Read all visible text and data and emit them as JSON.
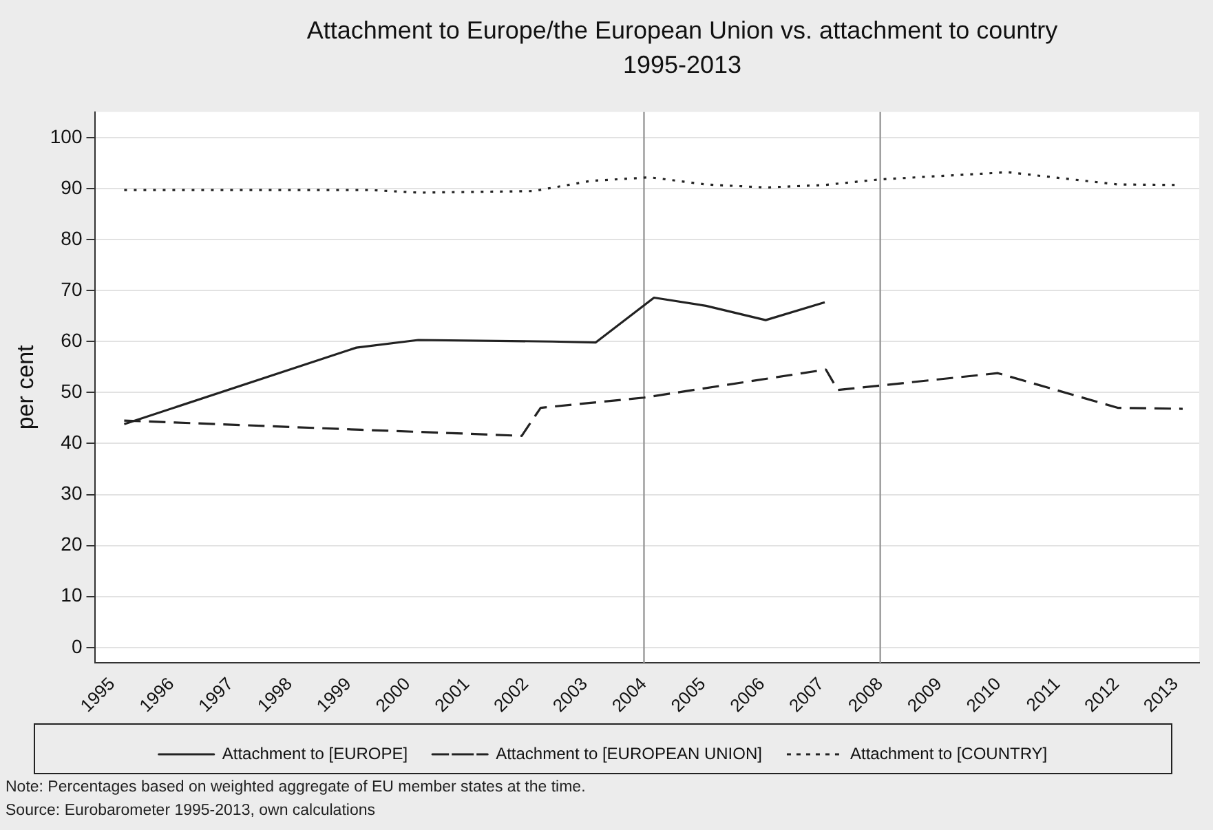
{
  "chart_data": {
    "type": "line",
    "title": "Attachment to Europe/the European Union vs. attachment to country 1995-2013",
    "ylabel": "per cent",
    "xlim": [
      1994.7,
      2013.4
    ],
    "xticks": [
      1995,
      1996,
      1997,
      1998,
      1999,
      2000,
      2001,
      2002,
      2003,
      2004,
      2005,
      2006,
      2007,
      2008,
      2009,
      2010,
      2011,
      2012,
      2013
    ],
    "ylim": [
      -3,
      105
    ],
    "yticks": [
      0,
      10,
      20,
      30,
      40,
      50,
      60,
      70,
      80,
      90,
      100
    ],
    "grid": "y",
    "legend": "bottom",
    "marker": "none",
    "series": [
      {
        "name": "Attachment to [EUROPE]",
        "color": "#222222",
        "line_style": "solid",
        "x": [
          1995.2,
          1999.13,
          2000.18,
          2002.45,
          2003.18,
          2004.17,
          2005.05,
          2006.06,
          2007.06
        ],
        "values": [
          43.8,
          58.8,
          60.3,
          60,
          59.8,
          68.6,
          67,
          64.2,
          67.7
        ]
      },
      {
        "name": "Attachment to [EUROPEAN UNION]",
        "color": "#222222",
        "line_style": "dashed",
        "x": [
          1995.2,
          1996.78,
          1999.2,
          2000.83,
          2001.93,
          2002.25,
          2004,
          2007.08,
          2007.28,
          2009.99,
          2012.02,
          2013.12
        ],
        "values": [
          44.5,
          43.8,
          42.7,
          42,
          41.5,
          47,
          49,
          54.5,
          50.5,
          53.8,
          47,
          46.8
        ]
      },
      {
        "name": "Attachment to [COUNTRY]",
        "color": "#222222",
        "line_style": "dotted",
        "x": [
          1995.2,
          1999.37,
          2000.18,
          2002.13,
          2003.1,
          2004.1,
          2005.05,
          2006.06,
          2007.06,
          2008,
          2010.16,
          2012.02,
          2013
        ],
        "values": [
          89.7,
          89.7,
          89.2,
          89.5,
          91.5,
          92.2,
          90.8,
          90.2,
          90.7,
          91.8,
          93.2,
          90.8,
          90.7
        ]
      }
    ],
    "ref_lines": [
      {
        "axis": "x",
        "value": 2004,
        "color": "#999999"
      },
      {
        "axis": "x",
        "value": 2008,
        "color": "#999999"
      }
    ],
    "annotations": [
      "Note: Percentages based on weighted aggregate of EU member states at the time.",
      "Source: Eurobarometer 1995-2013, own calculations"
    ]
  }
}
